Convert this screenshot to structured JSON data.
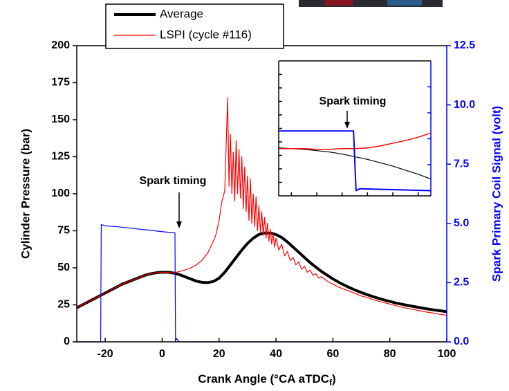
{
  "chart_data": [
    {
      "type": "line",
      "xlabel": [
        "Crank Angle (°CA aTDC",
        "f",
        ")"
      ],
      "ylabel": "Cylinder Pressure (bar)",
      "y2label": "Spark Primary Coil Signal (volt)",
      "annotation": "Spark timing",
      "xlim": [
        -30,
        100
      ],
      "xticks": [
        -20,
        0,
        20,
        40,
        60,
        80,
        100
      ],
      "ylim": [
        0,
        200
      ],
      "yticks": [
        0,
        25,
        50,
        75,
        100,
        125,
        150,
        175,
        200
      ],
      "y2lim": [
        0,
        12.5
      ],
      "y2ticks": [
        {
          "value": 0,
          "label": "0.0"
        },
        2.5,
        {
          "value": 5,
          "label": "5.0"
        },
        7.5,
        {
          "value": 10,
          "label": "10.0"
        },
        12.5
      ],
      "y2color": "#0000ff",
      "legend": "top",
      "series": [
        {
          "name": "Average",
          "color": "#000000",
          "width": 4,
          "x": [
            -30,
            -28,
            -26,
            -24,
            -22,
            -20,
            -18,
            -16,
            -14,
            -12,
            -10,
            -8,
            -6,
            -4,
            -2,
            0,
            2,
            4,
            6,
            8,
            10,
            12,
            14,
            16,
            18,
            20,
            22,
            24,
            26,
            28,
            30,
            32,
            34,
            36,
            38,
            40,
            42,
            44,
            46,
            48,
            50,
            52,
            54,
            56,
            58,
            60,
            62,
            64,
            66,
            68,
            70,
            72,
            74,
            76,
            78,
            80,
            82,
            84,
            86,
            88,
            90,
            92,
            94,
            96,
            98,
            100
          ],
          "values": [
            23,
            25,
            27,
            29,
            31,
            33,
            35,
            37,
            39,
            40.5,
            42,
            43.5,
            45,
            46,
            46.7,
            47,
            47,
            46.5,
            45.5,
            44,
            42.5,
            41,
            40.2,
            40,
            40.8,
            43,
            47,
            52,
            57,
            62,
            66.5,
            70,
            72.5,
            73.5,
            73.5,
            72.5,
            70.5,
            67.5,
            64,
            60.5,
            57,
            53.5,
            50.5,
            47.5,
            45,
            42.5,
            40.3,
            38.3,
            36.5,
            34.8,
            33.3,
            31.9,
            30.6,
            29.4,
            28.3,
            27.3,
            26.3,
            25.5,
            24.7,
            24,
            23.3,
            22.6,
            22,
            21.4,
            20.9,
            20.4
          ]
        },
        {
          "name": "LSPI (cycle #116)",
          "color": "#ff0000",
          "width": 1.2,
          "x": [
            -30,
            -28,
            -26,
            -24,
            -22,
            -20,
            -18,
            -16,
            -14,
            -12,
            -10,
            -8,
            -6,
            -4,
            -2,
            0,
            2,
            4,
            6,
            8,
            10,
            12,
            14,
            16,
            18,
            19,
            20,
            21,
            22,
            23,
            23.5,
            24,
            24.5,
            25,
            25.5,
            26,
            26.5,
            27,
            27.5,
            28,
            28.5,
            29,
            29.5,
            30,
            30.5,
            31,
            31.5,
            32,
            32.5,
            33,
            33.5,
            34,
            34.5,
            35,
            35.5,
            36,
            36.5,
            37,
            37.5,
            38,
            38.5,
            39,
            39.5,
            40,
            41,
            42,
            43,
            44,
            45,
            46,
            47,
            48,
            49,
            50,
            51,
            52,
            53,
            54,
            55,
            56,
            58,
            60,
            62,
            64,
            66,
            68,
            70,
            72,
            74,
            76,
            78,
            80,
            82,
            84,
            86,
            88,
            90,
            92,
            94,
            96,
            98,
            100
          ],
          "values": [
            23,
            25,
            27,
            29,
            31,
            33,
            35,
            37,
            39,
            40.5,
            42,
            43.5,
            45,
            46,
            46.7,
            47,
            47,
            46.5,
            47.5,
            48.5,
            50,
            52,
            55,
            60,
            68,
            73,
            82,
            95,
            102,
            165,
            105,
            140,
            100,
            128,
            95,
            136,
            100,
            130,
            97,
            125,
            90,
            118,
            88,
            112,
            82,
            110,
            80,
            100,
            78,
            98,
            75,
            92,
            74,
            88,
            72,
            84,
            70,
            80,
            68,
            76,
            66,
            73,
            64,
            70,
            62,
            66,
            58,
            61,
            55,
            57,
            52,
            54,
            49,
            51,
            47,
            48.5,
            45,
            46,
            43,
            44,
            41,
            39,
            37,
            35.5,
            34,
            32.5,
            31,
            30,
            28.6,
            27.5,
            26.5,
            25.5,
            24.5,
            23.5,
            22.7,
            22,
            21.2,
            20.5,
            19.8,
            19.2,
            18.5,
            18
          ]
        },
        {
          "color": "#0000ff",
          "width": 1.2,
          "axis": "y2",
          "x": [
            -30,
            -21.6,
            -21.4,
            -20,
            -15,
            -10,
            -5,
            0,
            4.5,
            4.7,
            5,
            6,
            100
          ],
          "values": [
            0,
            0,
            4.95,
            4.9,
            4.85,
            4.78,
            4.72,
            4.65,
            4.6,
            0,
            0.15,
            0,
            0
          ]
        }
      ]
    },
    {
      "type": "line",
      "annotation": "Spark timing",
      "xlim": [
        -1,
        11
      ],
      "xticks": [
        0,
        2,
        4,
        6,
        8,
        10
      ],
      "ylim": [
        40,
        60
      ],
      "yticks": [
        42,
        44,
        46,
        48,
        50,
        52,
        54,
        56,
        58
      ],
      "y2lim": [
        -0.4,
        10
      ],
      "y2ticks": [
        0,
        2,
        4,
        6,
        8
      ],
      "y2color": "#0000ff",
      "series": [
        {
          "color": "#000000",
          "width": 1.2,
          "x": [
            -1,
            0,
            1,
            2,
            3,
            4,
            5,
            6,
            7,
            8,
            9,
            10,
            11
          ],
          "values": [
            47.1,
            47,
            46.9,
            46.7,
            46.5,
            46.2,
            45.8,
            45.4,
            44.9,
            44.4,
            43.8,
            43.2,
            42.5
          ]
        },
        {
          "color": "#ff0000",
          "width": 1.5,
          "x": [
            -1,
            0,
            1,
            2,
            3,
            4,
            5,
            6,
            7,
            8,
            9,
            10,
            11
          ],
          "values": [
            47,
            47,
            47,
            46.9,
            46.9,
            47,
            47,
            47.1,
            47.4,
            47.8,
            48.2,
            48.7,
            49.3
          ]
        },
        {
          "color": "#0000ff",
          "width": 2,
          "axis": "y2",
          "x": [
            -1,
            4.9,
            5.1,
            5.4,
            11
          ],
          "values": [
            4.6,
            4.6,
            0,
            0.15,
            0
          ]
        }
      ]
    }
  ]
}
